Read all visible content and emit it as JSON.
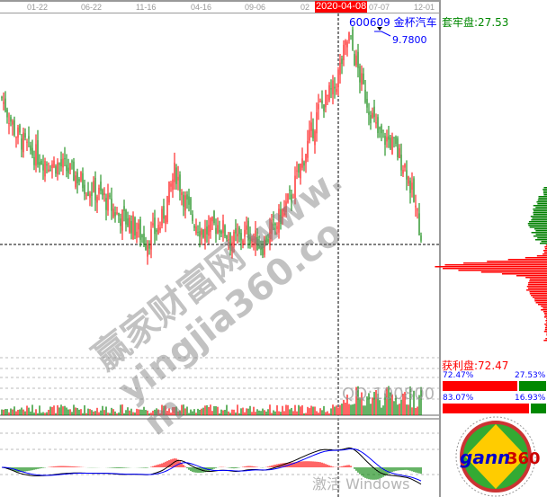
{
  "axis": {
    "ticks": [
      "01-22",
      "06-22",
      "11-16",
      "04-16",
      "09-06",
      "02",
      "07-07",
      "12-01"
    ],
    "highlight_date": "2020-04-08"
  },
  "stock": {
    "code": "600609",
    "name": "金杯汽车",
    "high_label": "9.7800"
  },
  "chips": {
    "trapped_label": "套牢盘:27.53",
    "profit_label": "获利盘:72.47",
    "row1": {
      "left": "72.47%",
      "right": "27.53%",
      "fraction": 0.7247
    },
    "row2": {
      "left": "83.07%",
      "right": "16.93%",
      "fraction": 0.8307
    }
  },
  "watermarks": {
    "main": "赢家财富网 www.yingjia360.com",
    "qq": "QQ:100800",
    "windows": "激活 Windows"
  },
  "logo": {
    "text": "gann360"
  },
  "colors": {
    "up": "#ff0000",
    "down": "#008000",
    "ma": "#0000ff",
    "macd": "#000000"
  },
  "chart_data": {
    "type": "candlestick",
    "price_max": 9.78,
    "closes": [
      8.4,
      7.6,
      7.2,
      7.0,
      6.9,
      6.7,
      6.4,
      6.2,
      5.8,
      5.6,
      5.2,
      5.6,
      6.8,
      5.8,
      5.4,
      5.6,
      5.2,
      5.4,
      5.1,
      5.6,
      6.2,
      7.2,
      8.2,
      8.6,
      9.78,
      8.6,
      7.6,
      7.4,
      6.8,
      5.4
    ]
  }
}
